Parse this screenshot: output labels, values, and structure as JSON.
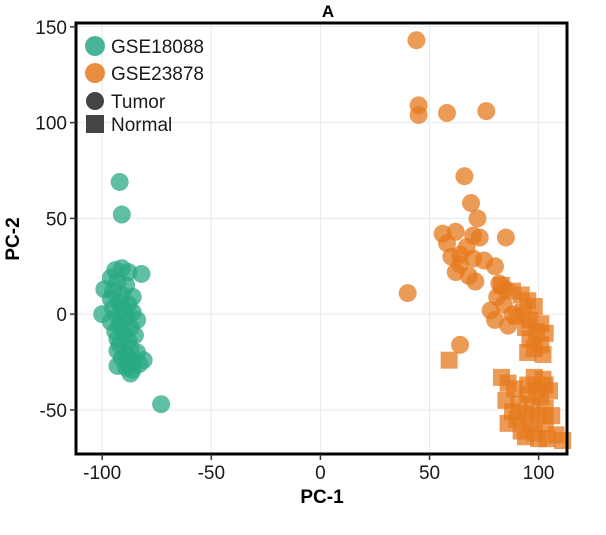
{
  "chart_data": {
    "type": "scatter",
    "title": "A",
    "xlabel": "PC-1",
    "ylabel": "PC-2",
    "xlim": [
      -112,
      113
    ],
    "ylim": [
      -73,
      152
    ],
    "x_ticks": [
      -100,
      -50,
      0,
      50,
      100
    ],
    "y_ticks": [
      -50,
      0,
      50,
      100,
      150
    ],
    "grid": true,
    "legend_placement": "top-left",
    "colors": {
      "GSE18088": "#2aa884",
      "GSE23878": "#e57a1e",
      "shape_legend": "#444444"
    },
    "shape_legend": [
      {
        "label": "Tumor",
        "shape": "circle"
      },
      {
        "label": "Normal",
        "shape": "square"
      }
    ],
    "series": [
      {
        "name": "GSE18088",
        "shape": "circle",
        "points": [
          [
            -92,
            69
          ],
          [
            -91,
            52
          ],
          [
            -91,
            24
          ],
          [
            -94,
            23
          ],
          [
            -88,
            22
          ],
          [
            -82,
            21
          ],
          [
            -96,
            19
          ],
          [
            -93,
            17
          ],
          [
            -89,
            15
          ],
          [
            -99,
            13
          ],
          [
            -95,
            12
          ],
          [
            -91,
            10
          ],
          [
            -86,
            9
          ],
          [
            -96,
            8
          ],
          [
            -92,
            6
          ],
          [
            -88,
            5
          ],
          [
            -95,
            3
          ],
          [
            -90,
            2
          ],
          [
            -86,
            1
          ],
          [
            -100,
            0
          ],
          [
            -93,
            -1
          ],
          [
            -89,
            -2
          ],
          [
            -84,
            -3
          ],
          [
            -96,
            -4
          ],
          [
            -92,
            -6
          ],
          [
            -87,
            -7
          ],
          [
            -94,
            -9
          ],
          [
            -90,
            -10
          ],
          [
            -85,
            -11
          ],
          [
            -93,
            -13
          ],
          [
            -88,
            -14
          ],
          [
            -92,
            -16
          ],
          [
            -87,
            -18
          ],
          [
            -93,
            -19
          ],
          [
            -84,
            -20
          ],
          [
            -89,
            -21
          ],
          [
            -91,
            -23
          ],
          [
            -86,
            -24
          ],
          [
            -81,
            -24
          ],
          [
            -88,
            -26
          ],
          [
            -83,
            -26
          ],
          [
            -93,
            -27
          ],
          [
            -89,
            -28
          ],
          [
            -86,
            -29
          ],
          [
            -87,
            -31
          ],
          [
            -73,
            -47
          ]
        ]
      },
      {
        "name": "GSE23878",
        "shape": "circle",
        "points": [
          [
            44,
            143
          ],
          [
            45,
            109
          ],
          [
            45,
            104
          ],
          [
            58,
            105
          ],
          [
            76,
            106
          ],
          [
            66,
            72
          ],
          [
            69,
            58
          ],
          [
            62,
            43
          ],
          [
            56,
            42
          ],
          [
            70,
            41
          ],
          [
            73,
            40
          ],
          [
            85,
            40
          ],
          [
            72,
            50
          ],
          [
            58,
            37
          ],
          [
            67,
            35
          ],
          [
            64,
            31
          ],
          [
            60,
            30
          ],
          [
            70,
            29
          ],
          [
            75,
            28
          ],
          [
            64,
            26
          ],
          [
            80,
            25
          ],
          [
            62,
            22
          ],
          [
            68,
            20
          ],
          [
            71,
            17
          ],
          [
            82,
            16
          ],
          [
            85,
            13
          ],
          [
            81,
            9
          ],
          [
            84,
            5
          ],
          [
            78,
            2
          ],
          [
            88,
            0
          ],
          [
            80,
            -3
          ],
          [
            86,
            -6
          ],
          [
            64,
            -16
          ],
          [
            40,
            11
          ]
        ]
      },
      {
        "name": "GSE23878",
        "shape": "square",
        "points": [
          [
            83,
            15
          ],
          [
            88,
            12
          ],
          [
            92,
            10
          ],
          [
            95,
            7
          ],
          [
            98,
            4
          ],
          [
            93,
            1
          ],
          [
            90,
            -1
          ],
          [
            96,
            -3
          ],
          [
            101,
            -5
          ],
          [
            94,
            -7
          ],
          [
            99,
            -9
          ],
          [
            103,
            -10
          ],
          [
            96,
            -13
          ],
          [
            101,
            -16
          ],
          [
            98,
            -18
          ],
          [
            95,
            -20
          ],
          [
            102,
            -21
          ],
          [
            59,
            -24
          ],
          [
            83,
            -33
          ],
          [
            98,
            -33
          ],
          [
            102,
            -34
          ],
          [
            86,
            -36
          ],
          [
            95,
            -37
          ],
          [
            103,
            -37
          ],
          [
            89,
            -39
          ],
          [
            99,
            -40
          ],
          [
            105,
            -40
          ],
          [
            95,
            -42
          ],
          [
            101,
            -43
          ],
          [
            85,
            -45
          ],
          [
            91,
            -47
          ],
          [
            97,
            -48
          ],
          [
            103,
            -49
          ],
          [
            88,
            -51
          ],
          [
            94,
            -52
          ],
          [
            100,
            -53
          ],
          [
            106,
            -53
          ],
          [
            90,
            -55
          ],
          [
            86,
            -57
          ],
          [
            96,
            -57
          ],
          [
            103,
            -57
          ],
          [
            92,
            -61
          ],
          [
            98,
            -62
          ],
          [
            108,
            -63
          ],
          [
            94,
            -64
          ],
          [
            100,
            -65
          ],
          [
            104,
            -65
          ],
          [
            111,
            -66
          ]
        ]
      }
    ]
  }
}
